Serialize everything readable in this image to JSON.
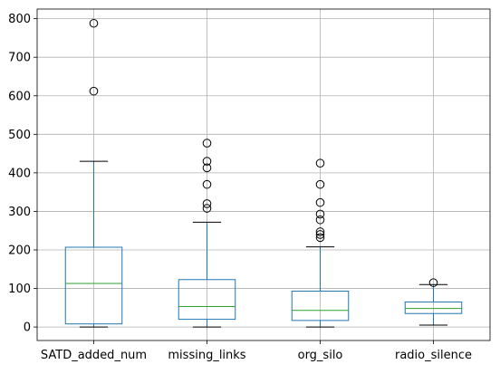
{
  "chart_data": {
    "type": "boxplot",
    "title": "",
    "xlabel": "",
    "ylabel": "",
    "ylim": [
      -35,
      825
    ],
    "yticks": [
      0,
      100,
      200,
      300,
      400,
      500,
      600,
      700,
      800
    ],
    "grid": true,
    "categories": [
      "SATD_added_num",
      "missing_links",
      "org_silo",
      "radio_silence"
    ],
    "boxes": [
      {
        "name": "SATD_added_num",
        "whisker_low": 0,
        "q1": 8,
        "median": 113,
        "q3": 207,
        "whisker_high": 430,
        "outliers": [
          612,
          788
        ]
      },
      {
        "name": "missing_links",
        "whisker_low": 0,
        "q1": 20,
        "median": 53,
        "q3": 123,
        "whisker_high": 272,
        "outliers": [
          308,
          320,
          370,
          413,
          430,
          477
        ]
      },
      {
        "name": "org_silo",
        "whisker_low": 0,
        "q1": 17,
        "median": 43,
        "q3": 93,
        "whisker_high": 208,
        "outliers": [
          232,
          240,
          247,
          278,
          293,
          323,
          370,
          425
        ]
      },
      {
        "name": "radio_silence",
        "whisker_low": 5,
        "q1": 35,
        "median": 48,
        "q3": 65,
        "whisker_high": 110,
        "outliers": [
          115
        ]
      }
    ],
    "colors": {
      "box": "#1f77b4",
      "median": "#2ca02c",
      "whisker": "#000000",
      "grid": "#b0b0b0",
      "outlier": "#000000"
    }
  }
}
